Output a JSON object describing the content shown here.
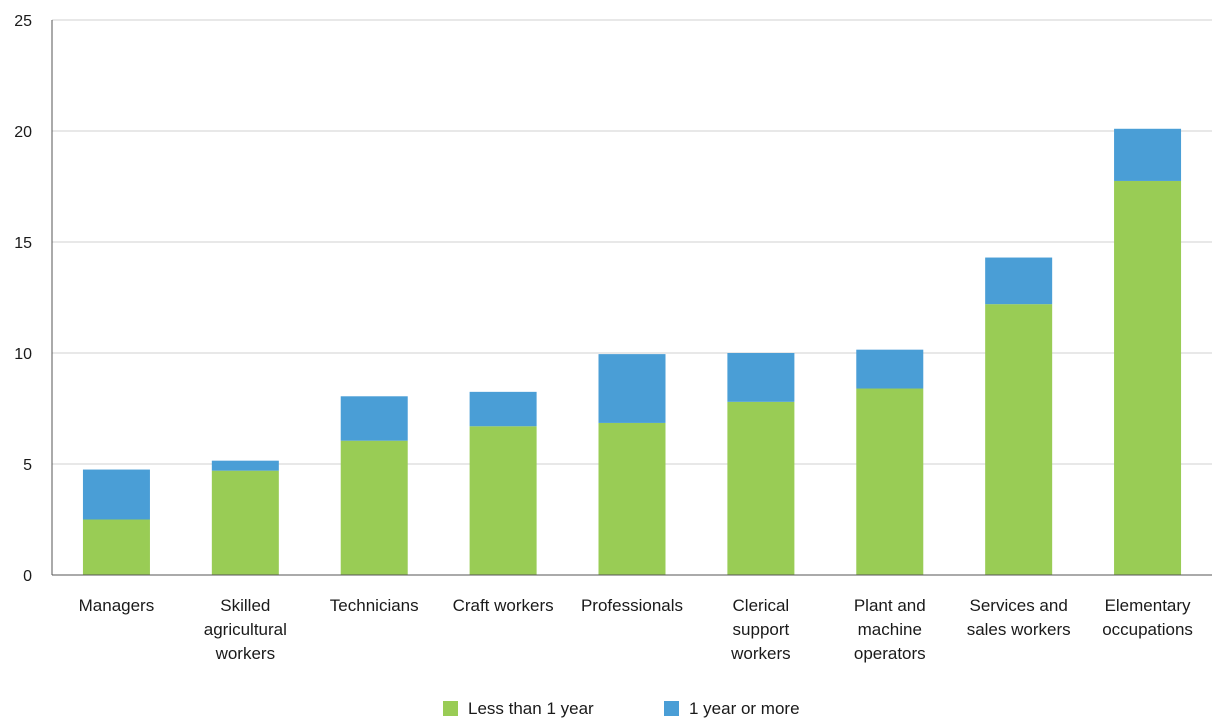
{
  "chart_data": {
    "type": "bar",
    "stacked": true,
    "categories": [
      [
        "Managers"
      ],
      [
        "Skilled",
        "agricultural",
        "workers"
      ],
      [
        "Technicians"
      ],
      [
        "Craft workers"
      ],
      [
        "Professionals"
      ],
      [
        "Clerical",
        "support",
        "workers"
      ],
      [
        "Plant and",
        "machine",
        "operators"
      ],
      [
        "Services and",
        "sales workers"
      ],
      [
        "Elementary",
        "occupations"
      ]
    ],
    "series": [
      {
        "name": "Less than 1 year",
        "color": "#99cc55",
        "values": [
          2.5,
          4.7,
          6.05,
          6.7,
          6.85,
          7.8,
          8.4,
          12.2,
          17.75
        ]
      },
      {
        "name": "1 year or more",
        "color": "#4a9ed6",
        "values": [
          2.25,
          0.45,
          2.0,
          1.55,
          3.1,
          2.2,
          1.75,
          2.1,
          2.35
        ]
      }
    ],
    "title": "",
    "xlabel": "",
    "ylabel": "",
    "ylim": [
      0,
      25
    ],
    "yticks": [
      0,
      5,
      10,
      15,
      20,
      25
    ],
    "grid": true,
    "legend_position": "bottom-center"
  }
}
